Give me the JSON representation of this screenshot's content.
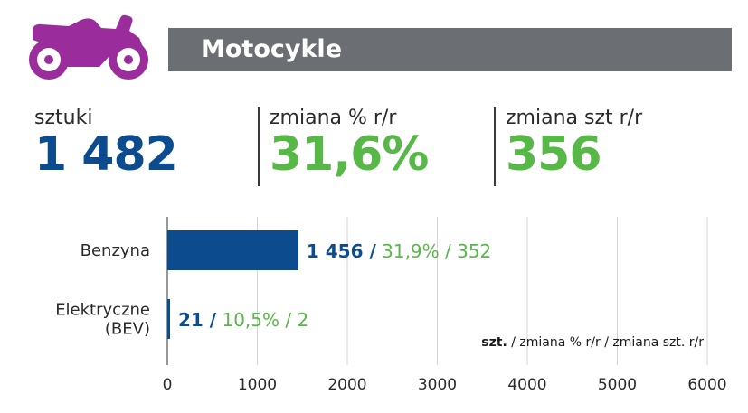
{
  "header": {
    "title": "Motocykle",
    "icon": "motorcycle-icon",
    "icon_color": "#9a2c9c",
    "bar_color": "#6b6f73"
  },
  "stats": [
    {
      "label": "sztuki",
      "value": "1 482",
      "color": "#0c4b8e"
    },
    {
      "label": "zmiana % r/r",
      "value": "31,6%",
      "color": "#57b747"
    },
    {
      "label": "zmiana szt r/r",
      "value": "356",
      "color": "#57b747"
    }
  ],
  "legend": {
    "bold": "szt.",
    "rest": " / zmiana % r/r / zmiana szt. r/r"
  },
  "chart_data": {
    "type": "bar",
    "orientation": "horizontal",
    "categories": [
      [
        "Benzyna"
      ],
      [
        "Elektryczne",
        "(BEV)"
      ]
    ],
    "values": [
      1456,
      21
    ],
    "value_labels": [
      "1 456",
      "21"
    ],
    "pct_change_labels": [
      "31,9%",
      "10,5%"
    ],
    "abs_change_labels": [
      "352",
      "2"
    ],
    "xlim": [
      0,
      6000
    ],
    "xticks": [
      0,
      1000,
      2000,
      3000,
      4000,
      5000,
      6000
    ],
    "grid": true,
    "bar_color": "#0c4b8e",
    "change_color": "#57b747"
  }
}
